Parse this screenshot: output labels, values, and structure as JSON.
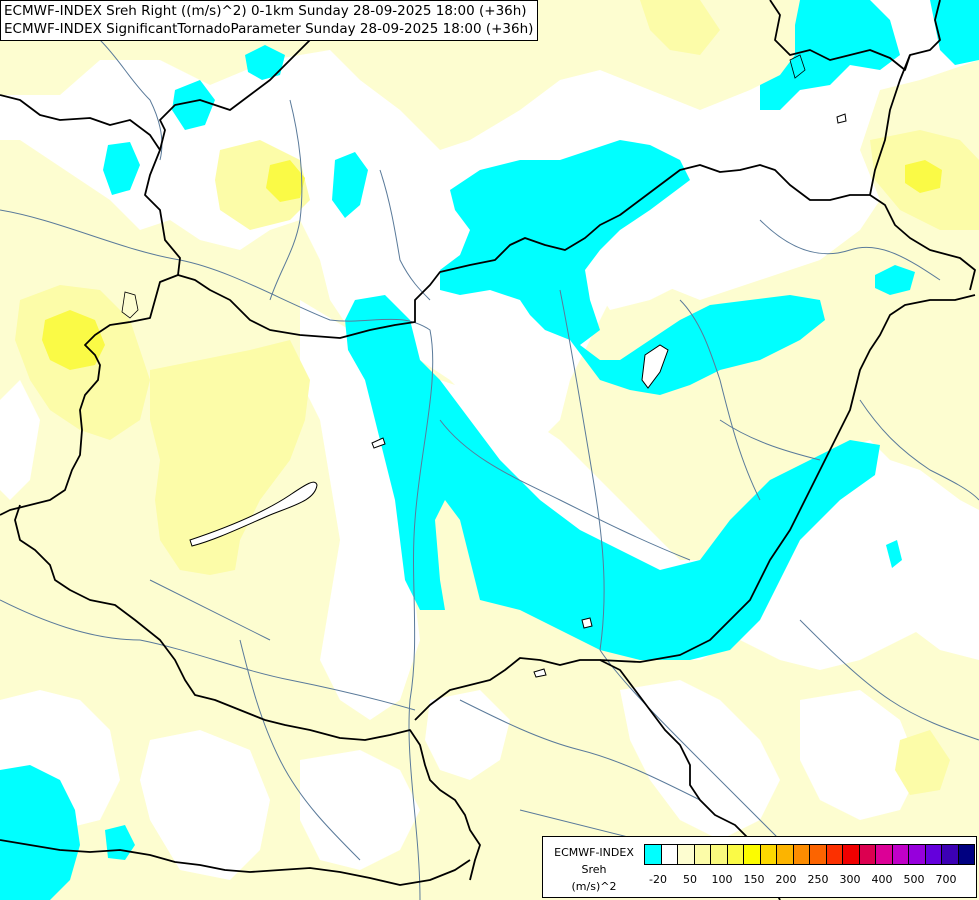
{
  "titles": {
    "line1": "ECMWF-INDEX Sreh Right ((m/s)^2) 0-1km Sunday 28-09-2025 18:00 (+36h)",
    "line2": "ECMWF-INDEX SignificantTornadoParameter Sunday 28-09-2025 18:00 (+36h)"
  },
  "legend": {
    "label_model": "ECMWF-INDEX",
    "label_param": "Sreh",
    "label_unit": "(m/s)^2",
    "colors": [
      "#00ffff",
      "#ffffff",
      "#fdfdd0",
      "#fcfca8",
      "#fafa7e",
      "#fafa46",
      "#fcfc00",
      "#fcd800",
      "#fcb400",
      "#fc8c00",
      "#fc6400",
      "#fc3000",
      "#f00000",
      "#dc0050",
      "#dc0096",
      "#c000c8",
      "#9600dc",
      "#6400dc",
      "#3c00b4",
      "#000080"
    ],
    "tick_labels": [
      "-20",
      "50",
      "100",
      "150",
      "200",
      "250",
      "300",
      "400",
      "500",
      "700"
    ]
  },
  "colors": {
    "sea": "#ffffff",
    "cyan": "#00ffff",
    "pale_yellow": "#fdfdd0",
    "light_yellow": "#fcfca8",
    "yellow": "#fafa46",
    "border": "#000000",
    "river": "#5a7a9a"
  }
}
